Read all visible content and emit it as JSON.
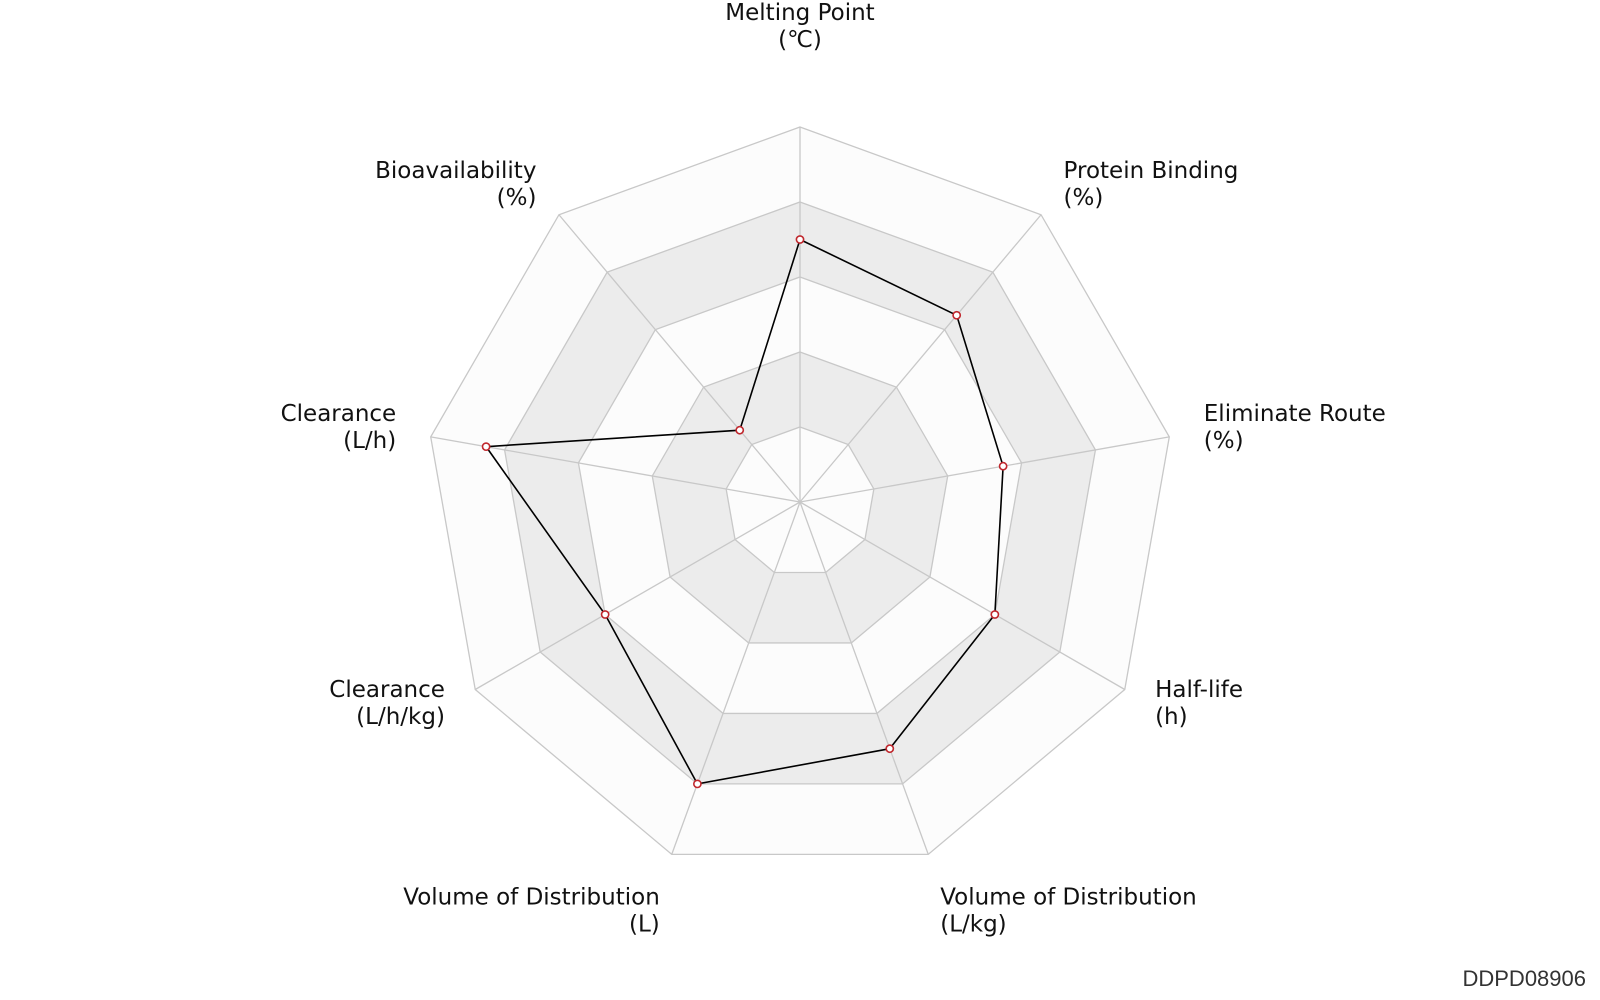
{
  "chart_data": {
    "type": "radar",
    "axes": [
      {
        "name": "Melting Point",
        "unit": "(℃)"
      },
      {
        "name": "Protein Binding",
        "unit": "(%)"
      },
      {
        "name": "Eliminate Route",
        "unit": "(%)"
      },
      {
        "name": "Half-life",
        "unit": "(h)"
      },
      {
        "name": "Volume of Distribution",
        "unit": "(L/kg)"
      },
      {
        "name": "Volume of Distribution",
        "unit": "(L)"
      },
      {
        "name": "Clearance",
        "unit": "(L/h/kg)"
      },
      {
        "name": "Clearance",
        "unit": "(L/h)"
      },
      {
        "name": "Bioavailability",
        "unit": "(%)"
      }
    ],
    "rings": 5,
    "range": [
      0,
      1
    ],
    "series": [
      {
        "values": [
          0.7,
          0.65,
          0.55,
          0.6,
          0.7,
          0.8,
          0.6,
          0.85,
          0.25
        ]
      }
    ],
    "colors": {
      "grid": "#c8c8c8",
      "band_light": "#fcfcfc",
      "band_dark": "#ececec",
      "line": "#000000",
      "marker": "#c0272d"
    }
  },
  "watermark": "DDPD08906"
}
